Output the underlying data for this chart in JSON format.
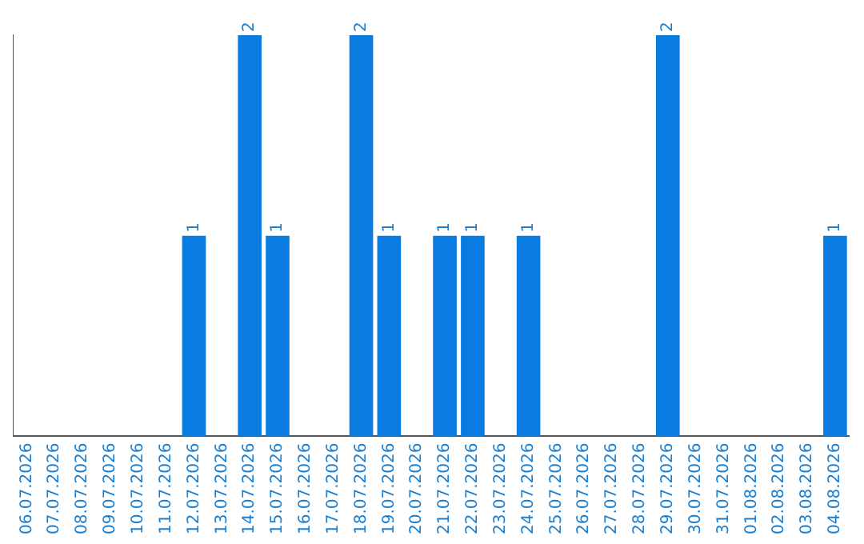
{
  "chart_data": {
    "type": "bar",
    "categories": [
      "06.07.2026",
      "07.07.2026",
      "08.07.2026",
      "09.07.2026",
      "10.07.2026",
      "11.07.2026",
      "12.07.2026",
      "13.07.2026",
      "14.07.2026",
      "15.07.2026",
      "16.07.2026",
      "17.07.2026",
      "18.07.2026",
      "19.07.2026",
      "20.07.2026",
      "21.07.2026",
      "22.07.2026",
      "23.07.2026",
      "24.07.2026",
      "25.07.2026",
      "26.07.2026",
      "27.07.2026",
      "28.07.2026",
      "29.07.2026",
      "30.07.2026",
      "31.07.2026",
      "01.08.2026",
      "02.08.2026",
      "03.08.2026",
      "04.08.2026"
    ],
    "values": [
      0,
      0,
      0,
      0,
      0,
      0,
      1,
      0,
      2,
      1,
      0,
      0,
      2,
      1,
      0,
      1,
      1,
      0,
      1,
      0,
      0,
      0,
      0,
      2,
      0,
      0,
      0,
      0,
      0,
      1
    ],
    "value_labels": [
      null,
      null,
      null,
      null,
      null,
      null,
      "1",
      null,
      "2",
      "1",
      null,
      null,
      "2",
      "1",
      null,
      "1",
      "1",
      null,
      "1",
      null,
      null,
      null,
      null,
      "2",
      null,
      null,
      null,
      null,
      null,
      "1"
    ],
    "color": "#0a7be0",
    "ylim": [
      0,
      2
    ],
    "tick_labels": "x",
    "grid": false,
    "legend": false
  }
}
